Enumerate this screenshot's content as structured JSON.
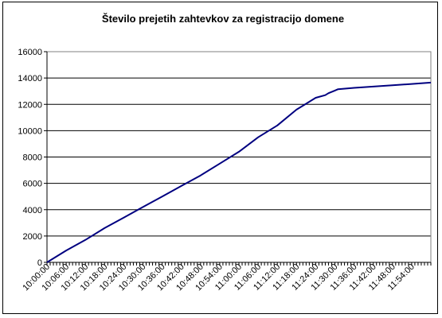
{
  "chart_data": {
    "type": "line",
    "title": "Število prejetih zahtevkov za registracijo domene",
    "xlabel": "",
    "ylabel": "",
    "ylim": [
      0,
      16000
    ],
    "y_ticks": [
      0,
      2000,
      4000,
      6000,
      8000,
      10000,
      12000,
      14000,
      16000
    ],
    "y_tick_labels": [
      "0",
      "2000",
      "4000",
      "6000",
      "8000",
      "10000",
      "12000",
      "14000",
      "16000"
    ],
    "x_tick_labels": [
      "10:00:00",
      "10:06:00",
      "10:12:00",
      "10:18:00",
      "10:24:00",
      "10:30:00",
      "10:36:00",
      "10:42:00",
      "10:48:00",
      "10:54:00",
      "11:00:00",
      "11:06:00",
      "11:12:00",
      "11:18:00",
      "11:24:00",
      "11:30:00",
      "11:36:00",
      "11:42:00",
      "11:48:00",
      "11:54:00"
    ],
    "grid": true,
    "legend": "none",
    "line_color": "#000080",
    "series": [
      {
        "x": [
          "10:00:00",
          "10:06:00",
          "10:12:00",
          "10:18:00",
          "10:24:00",
          "10:30:00",
          "10:36:00",
          "10:42:00",
          "10:48:00",
          "10:54:00",
          "11:00:00",
          "11:06:00",
          "11:12:00",
          "11:18:00",
          "11:24:00",
          "11:27:00",
          "11:28:00",
          "11:30:00",
          "11:31:00",
          "11:36:00",
          "11:42:00",
          "11:48:00",
          "11:54:00",
          "12:00:00"
        ],
        "values": [
          0,
          900,
          1700,
          2600,
          3400,
          4200,
          5000,
          5800,
          6600,
          7500,
          8400,
          9500,
          10400,
          11600,
          12500,
          12700,
          12850,
          13050,
          13150,
          13250,
          13350,
          13450,
          13550,
          13650
        ]
      }
    ]
  }
}
